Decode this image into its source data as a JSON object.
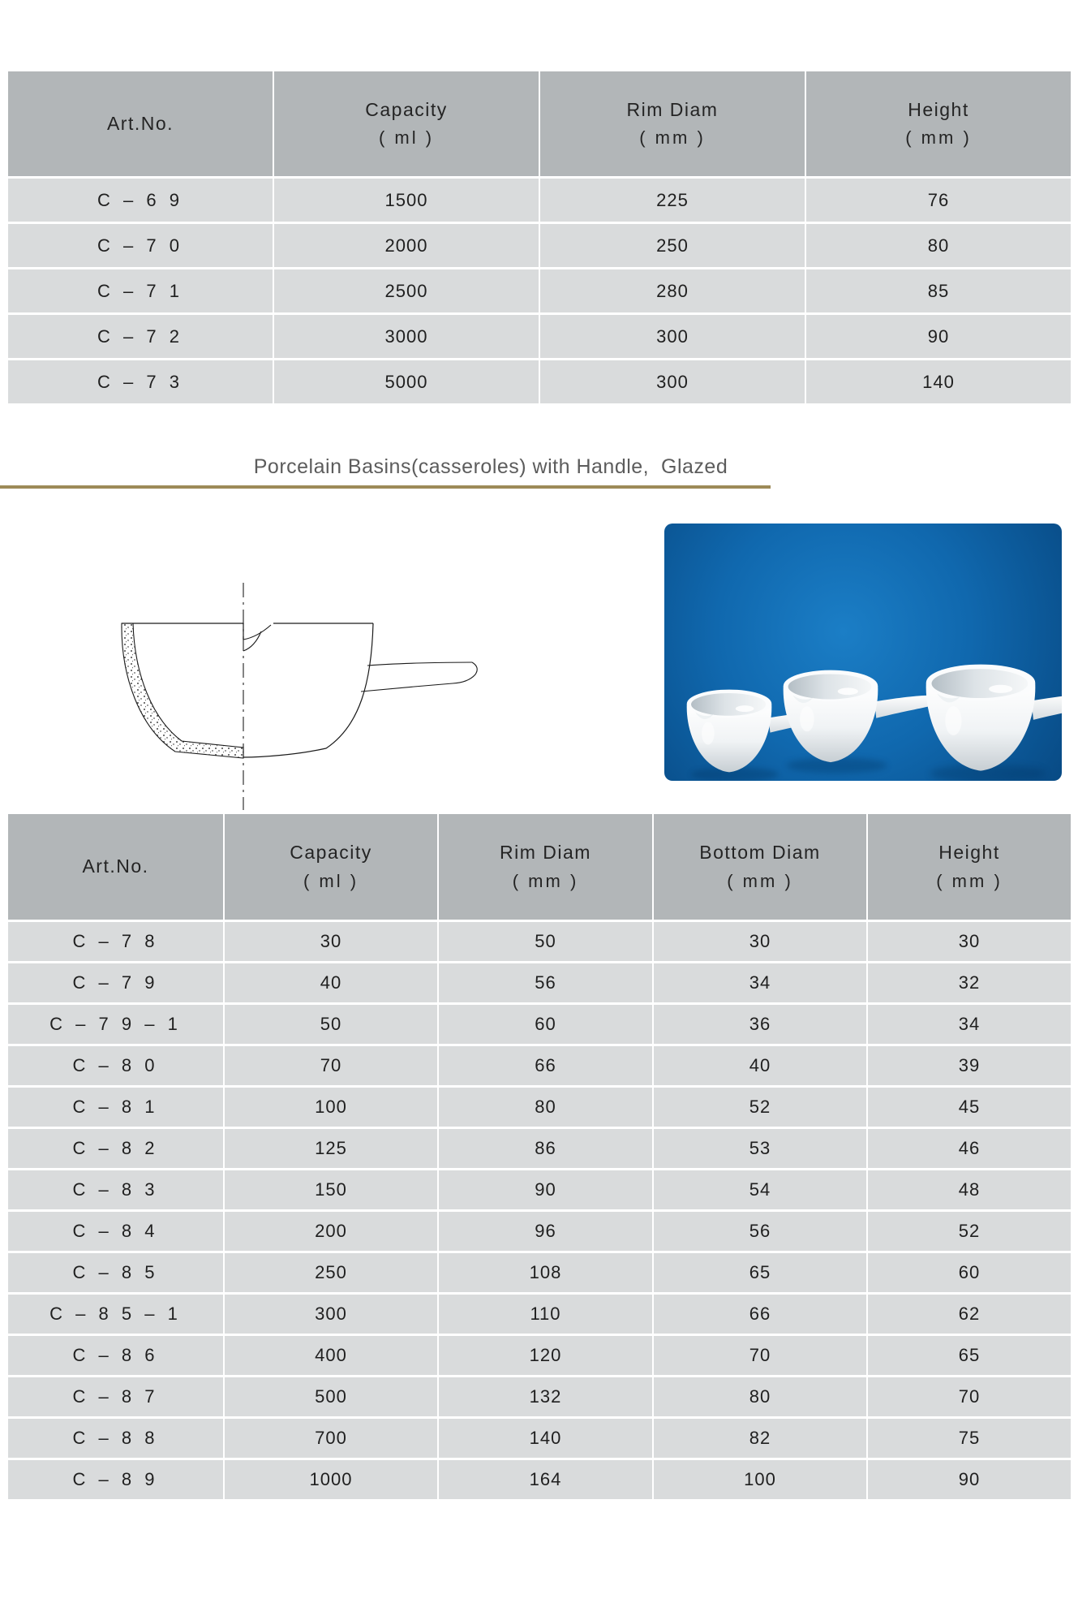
{
  "title": {
    "text": "Porcelain Basins(casseroles) with Handle,  Glazed"
  },
  "top_table": {
    "columns": [
      {
        "label": "Art.No.",
        "unit": ""
      },
      {
        "label": "Capacity",
        "unit": "( ml )"
      },
      {
        "label": "Rim Diam",
        "unit": "( mm )"
      },
      {
        "label": "Height",
        "unit": "( mm )"
      }
    ],
    "rows": [
      [
        "C – 6 9",
        "1500",
        "225",
        "76"
      ],
      [
        "C – 7 0",
        "2000",
        "250",
        "80"
      ],
      [
        "C – 7 1",
        "2500",
        "280",
        "85"
      ],
      [
        "C – 7 2",
        "3000",
        "300",
        "90"
      ],
      [
        "C – 7 3",
        "5000",
        "300",
        "140"
      ]
    ]
  },
  "bottom_table": {
    "columns": [
      {
        "label": "Art.No.",
        "unit": ""
      },
      {
        "label": "Capacity",
        "unit": "( ml )"
      },
      {
        "label": "Rim Diam",
        "unit": "( mm )"
      },
      {
        "label": "Bottom Diam",
        "unit": "( mm )"
      },
      {
        "label": "Height",
        "unit": "( mm )"
      }
    ],
    "rows": [
      [
        "C – 7 8",
        "30",
        "50",
        "30",
        "30"
      ],
      [
        "C – 7 9",
        "40",
        "56",
        "34",
        "32"
      ],
      [
        "C – 7 9 – 1",
        "50",
        "60",
        "36",
        "34"
      ],
      [
        "C – 8 0",
        "70",
        "66",
        "40",
        "39"
      ],
      [
        "C – 8 1",
        "100",
        "80",
        "52",
        "45"
      ],
      [
        "C – 8 2",
        "125",
        "86",
        "53",
        "46"
      ],
      [
        "C – 8 3",
        "150",
        "90",
        "54",
        "48"
      ],
      [
        "C – 8 4",
        "200",
        "96",
        "56",
        "52"
      ],
      [
        "C – 8 5",
        "250",
        "108",
        "65",
        "60"
      ],
      [
        "C – 8 5 – 1",
        "300",
        "110",
        "66",
        "62"
      ],
      [
        "C – 8 6",
        "400",
        "120",
        "70",
        "65"
      ],
      [
        "C – 8 7",
        "500",
        "132",
        "80",
        "70"
      ],
      [
        "C – 8 8",
        "700",
        "140",
        "82",
        "75"
      ],
      [
        "C – 8 9",
        "1000",
        "164",
        "100",
        "90"
      ]
    ]
  },
  "colors": {
    "table_header_bg": "#b2b6b8",
    "table_row_bg": "#d9dbdc",
    "title_text": "#5c5c5c",
    "title_underline": "#9d8a58",
    "photo_bg_center": "#1b7ec6",
    "photo_bg_edge": "#084a84"
  }
}
